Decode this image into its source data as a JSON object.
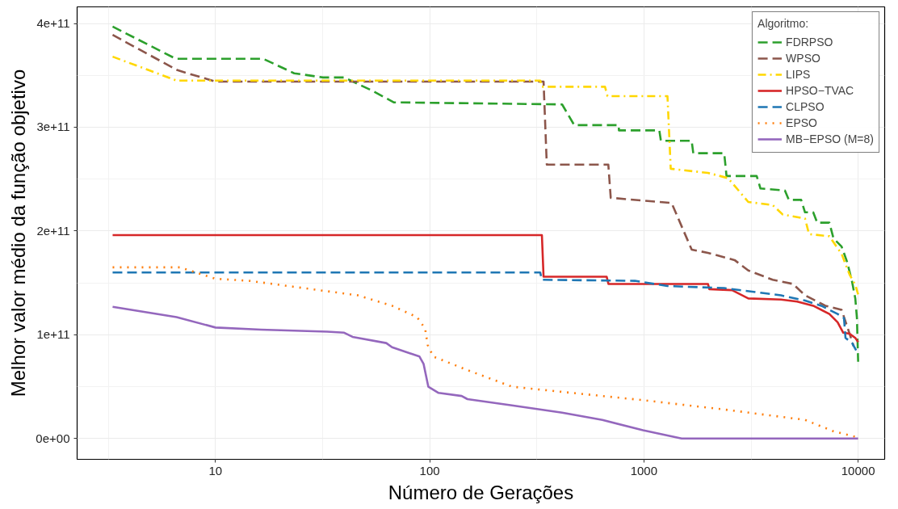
{
  "chart_data": {
    "type": "line",
    "xlabel": "Número de Gerações",
    "ylabel": "Melhor valor médio da função objetivo",
    "legend_title": "Algoritmo:",
    "log": "x",
    "grid": true,
    "legend": "top right",
    "xlim": [
      2.26,
      13300
    ],
    "xticks": [
      10,
      100,
      1000,
      10000
    ],
    "ylim": [
      -20000000000.0,
      416000000000.0
    ],
    "yticks": [
      {
        "value": 0,
        "label": "0e+00"
      },
      {
        "value": 100000000000.0,
        "label": "1e+11"
      },
      {
        "value": 200000000000.0,
        "label": "2e+11"
      },
      {
        "value": 300000000000.0,
        "label": "3e+11"
      },
      {
        "value": 400000000000.0,
        "label": "4e+11"
      }
    ],
    "series": [
      {
        "name": "FDRPSO",
        "color": "#2ca02c",
        "line_style": "dashed",
        "x": [
          3.31,
          6.53,
          16.7,
          23.3,
          31.8,
          39.9,
          54.2,
          67.9,
          415,
          473,
          764,
          764,
          1180,
          1200,
          1670,
          1700,
          2370,
          2430,
          3360,
          3500,
          4550,
          4750,
          5420,
          5650,
          6170,
          6440,
          7340,
          7670,
          8370,
          8890,
          9370,
          9700,
          9870,
          10000
        ],
        "values": [
          397000000000.0,
          366000000000.0,
          366000000000.0,
          352000000000.0,
          348000000000.0,
          348000000000.0,
          335000000000.0,
          324000000000.0,
          322000000000.0,
          302000000000.0,
          302000000000.0,
          297000000000.0,
          297000000000.0,
          287000000000.0,
          287000000000.0,
          275000000000.0,
          275000000000.0,
          253000000000.0,
          253000000000.0,
          241000000000.0,
          239000000000.0,
          230000000000.0,
          230000000000.0,
          218000000000.0,
          218000000000.0,
          208000000000.0,
          208000000000.0,
          193000000000.0,
          185000000000.0,
          170000000000.0,
          151000000000.0,
          135000000000.0,
          116000000000.0,
          74000000000.0
        ]
      },
      {
        "name": "WPSO",
        "color": "#8c564b",
        "line_style": "dashed",
        "x": [
          3.31,
          6.64,
          10,
          340,
          352,
          682,
          700,
          1346,
          1672,
          1990,
          2650,
          3070,
          3990,
          4960,
          5650,
          7030,
          8370,
          9120,
          9530
        ],
        "values": [
          389000000000.0,
          355000000000.0,
          344000000000.0,
          344000000000.0,
          264000000000.0,
          264000000000.0,
          232000000000.0,
          227000000000.0,
          182000000000.0,
          179000000000.0,
          172000000000.0,
          162000000000.0,
          153000000000.0,
          149000000000.0,
          138000000000.0,
          128000000000.0,
          124000000000.0,
          101000000000.0,
          89000000000.0
        ]
      },
      {
        "name": "LIPS",
        "color": "#ffd700",
        "line_style": "dashdot",
        "x": [
          3.31,
          6.58,
          328,
          334,
          658,
          676,
          1288,
          1334,
          1990,
          2470,
          3070,
          3990,
          4440,
          5650,
          5900,
          7340,
          8370,
          9120,
          9700,
          10000
        ],
        "values": [
          368000000000.0,
          345000000000.0,
          345000000000.0,
          339000000000.0,
          339000000000.0,
          330000000000.0,
          330000000000.0,
          260000000000.0,
          256000000000.0,
          251000000000.0,
          228000000000.0,
          225000000000.0,
          216000000000.0,
          212000000000.0,
          197000000000.0,
          195000000000.0,
          178000000000.0,
          158000000000.0,
          148000000000.0,
          139000000000.0
        ]
      },
      {
        "name": "HPSO−TVAC",
        "color": "#d62728",
        "line_style": "solid",
        "x": [
          3.31,
          334,
          340,
          670,
          683,
          1990,
          2020,
          2580,
          3070,
          4360,
          5190,
          6170,
          7340,
          8020,
          8520,
          9120,
          9700,
          10000
        ],
        "values": [
          196000000000.0,
          196000000000.0,
          156000000000.0,
          156000000000.0,
          149000000000.0,
          149000000000.0,
          144000000000.0,
          143000000000.0,
          135000000000.0,
          134000000000.0,
          132000000000.0,
          128000000000.0,
          120000000000.0,
          112000000000.0,
          102000000000.0,
          101000000000.0,
          97000000000.0,
          93000000000.0
        ]
      },
      {
        "name": "CLPSO",
        "color": "#1f77b4",
        "line_style": "dashed",
        "x": [
          3.31,
          328,
          334,
          908,
          1288,
          2370,
          3360,
          4360,
          5650,
          6730,
          8020,
          8590,
          8730,
          9370,
          9790
        ],
        "values": [
          160000000000.0,
          160000000000.0,
          153000000000.0,
          152000000000.0,
          147000000000.0,
          145000000000.0,
          141000000000.0,
          138000000000.0,
          133000000000.0,
          128000000000.0,
          120000000000.0,
          116000000000.0,
          97000000000.0,
          92000000000.0,
          85000000000.0
        ]
      },
      {
        "name": "EPSO",
        "color": "#ff7f0e",
        "line_style": "dotted",
        "x": [
          3.31,
          6.82,
          10,
          14.4,
          30.5,
          46.2,
          66.7,
          87.3,
          95.2,
          97.9,
          104,
          150,
          242,
          415,
          990,
          2370,
          5650,
          7670,
          10000
        ],
        "values": [
          165000000000.0,
          165000000000.0,
          154000000000.0,
          152000000000.0,
          143000000000.0,
          138000000000.0,
          128000000000.0,
          117000000000.0,
          106000000000.0,
          90000000000.0,
          79000000000.0,
          66000000000.0,
          50000000000.0,
          45000000000.0,
          37000000000.0,
          28000000000.0,
          18000000000.0,
          7000000000.0,
          1000000000.0
        ]
      },
      {
        "name": "MB−EPSO (M=8)",
        "color": "#9467bd",
        "line_style": "solid",
        "x": [
          3.31,
          6.58,
          10,
          16.3,
          33.2,
          39.9,
          43.6,
          62.7,
          66.7,
          89.6,
          93.6,
          98.5,
          110,
          141,
          150,
          242,
          415,
          640,
          990,
          1500,
          10000
        ],
        "values": [
          127000000000.0,
          117000000000.0,
          107000000000.0,
          105000000000.0,
          103000000000.0,
          102000000000.0,
          98000000000.0,
          92000000000.0,
          88000000000.0,
          79000000000.0,
          72000000000.0,
          50000000000.0,
          44000000000.0,
          41000000000.0,
          38000000000.0,
          32000000000.0,
          25000000000.0,
          18000000000.0,
          8000000000.0,
          0.0,
          0.0
        ]
      }
    ]
  }
}
